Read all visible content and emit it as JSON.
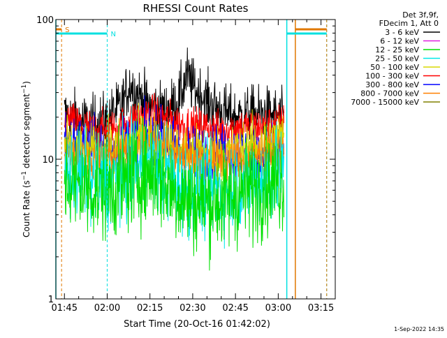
{
  "chart_data": {
    "type": "line",
    "title": "RHESSI Count Rates",
    "xlabel": "Start Time (20-Oct-16 01:42:02)",
    "ylabel": "Count Rate (s⁻¹ detector segment⁻¹)",
    "ylabel_main": "Count Rate (s",
    "ylabel_mid": " detector segment",
    "ylabel_end": ")",
    "ylabel_sup": "−1",
    "yscale": "log",
    "ylim": [
      1,
      100
    ],
    "xlim": [
      "01:42",
      "03:20"
    ],
    "y_ticks": [
      "1",
      "10",
      "100"
    ],
    "x_ticks": [
      "01:45",
      "02:00",
      "02:15",
      "02:30",
      "02:45",
      "03:00",
      "03:15"
    ],
    "timestamp": "1-Sep-2022 14:35",
    "legend": {
      "placement": "right",
      "header": [
        "Det 3f,9f,",
        "FDecim 1, Att 0"
      ],
      "entries": [
        {
          "label": "3 - 6 keV",
          "color": "#000000"
        },
        {
          "label": "6 - 12 keV",
          "color": "#e020e0"
        },
        {
          "label": "12 - 25 keV",
          "color": "#00e000"
        },
        {
          "label": "25 - 50 keV",
          "color": "#00e8e8"
        },
        {
          "label": "50 - 100 keV",
          "color": "#d8d800"
        },
        {
          "label": "100 - 300 keV",
          "color": "#ff0000"
        },
        {
          "label": "300 - 800 keV",
          "color": "#0000ff"
        },
        {
          "label": "800 - 7000 keV",
          "color": "#ff8000"
        },
        {
          "label": "7000 - 15000 keV",
          "color": "#808000"
        }
      ]
    },
    "series": [
      {
        "name": "3 - 6 keV",
        "color": "#000000",
        "noise": 0.1,
        "x": [
          "01:45",
          "01:50",
          "01:55",
          "02:00",
          "02:05",
          "02:08",
          "02:10",
          "02:15",
          "02:20",
          "02:25",
          "02:28",
          "02:30",
          "02:35",
          "02:40",
          "02:45",
          "02:50",
          "02:55",
          "03:00",
          "03:02"
        ],
        "y": [
          21,
          19,
          18,
          19,
          24,
          35,
          30,
          24,
          22,
          26,
          40,
          33,
          26,
          22,
          20,
          21,
          21,
          20,
          19
        ]
      },
      {
        "name": "100 - 300 keV",
        "color": "#ff0000",
        "noise": 0.07,
        "x": [
          "01:45",
          "01:50",
          "01:55",
          "02:00",
          "02:05",
          "02:10",
          "02:15",
          "02:20",
          "02:25",
          "02:30",
          "02:35",
          "02:40",
          "02:45",
          "02:50",
          "02:55",
          "03:00",
          "03:02"
        ],
        "y": [
          19,
          18,
          16,
          16,
          17,
          20,
          21,
          20,
          18,
          17,
          17,
          16,
          17,
          17,
          17,
          18,
          18
        ]
      },
      {
        "name": "300 - 800 keV",
        "color": "#0000ff",
        "noise": 0.1,
        "x": [
          "01:45",
          "01:50",
          "01:55",
          "02:00",
          "02:05",
          "02:10",
          "02:15",
          "02:20",
          "02:25",
          "02:30",
          "02:35",
          "02:40",
          "02:45",
          "02:50",
          "02:55",
          "03:00",
          "03:02"
        ],
        "y": [
          15,
          13,
          12,
          12,
          13,
          14,
          15,
          14,
          12,
          11,
          11,
          11,
          11,
          11,
          11,
          12,
          12
        ]
      },
      {
        "name": "50 - 100 keV",
        "color": "#d8d800",
        "noise": 0.1,
        "x": [
          "01:45",
          "01:50",
          "01:55",
          "02:00",
          "02:05",
          "02:10",
          "02:15",
          "02:20",
          "02:25",
          "02:30",
          "02:35",
          "02:40",
          "02:45",
          "02:50",
          "02:55",
          "03:00",
          "03:02"
        ],
        "y": [
          12,
          11,
          11,
          11,
          12,
          13,
          14,
          13,
          11,
          11,
          11,
          11,
          11,
          12,
          13,
          14,
          14
        ]
      },
      {
        "name": "800 - 7000 keV",
        "color": "#ff8000",
        "noise": 0.08,
        "x": [
          "01:45",
          "01:50",
          "01:55",
          "02:00",
          "02:05",
          "02:10",
          "02:15",
          "02:20",
          "02:25",
          "02:30",
          "02:35",
          "02:40",
          "02:45",
          "02:50",
          "02:55",
          "03:00",
          "03:02"
        ],
        "y": [
          11,
          10,
          10,
          10,
          11,
          12,
          13,
          12,
          11,
          10,
          10,
          10,
          10,
          10,
          11,
          11,
          11
        ]
      },
      {
        "name": "25 - 50 keV",
        "color": "#00e8e8",
        "noise": 0.16,
        "x": [
          "01:45",
          "01:50",
          "01:55",
          "02:00",
          "02:05",
          "02:10",
          "02:15",
          "02:20",
          "02:25",
          "02:30",
          "02:35",
          "02:40",
          "02:45",
          "02:50",
          "02:55",
          "03:00",
          "03:02"
        ],
        "y": [
          8,
          7.5,
          7,
          7,
          7.5,
          8.5,
          9,
          8,
          6.5,
          6,
          6,
          6,
          6.5,
          7,
          7.5,
          8,
          8
        ]
      },
      {
        "name": "12 - 25 keV",
        "color": "#00e000",
        "noise": 0.18,
        "x": [
          "01:45",
          "01:50",
          "01:55",
          "02:00",
          "02:05",
          "02:10",
          "02:15",
          "02:20",
          "02:25",
          "02:30",
          "02:35",
          "02:40",
          "02:45",
          "02:50",
          "02:55",
          "03:00",
          "03:02"
        ],
        "y": [
          7,
          6.5,
          6,
          6,
          6.5,
          7.5,
          8,
          7,
          5.5,
          5,
          5,
          5,
          5.5,
          6,
          6.5,
          7,
          7
        ]
      }
    ],
    "annotations": {
      "attenuator_segments": [
        {
          "label": "S",
          "color": "#e07800",
          "x_start": "01:42",
          "x_end": "01:44"
        },
        {
          "label": "N",
          "color": "#00e0e0",
          "x_start": "01:42",
          "x_end": "02:00"
        },
        {
          "label": "",
          "color": "#00e0e0",
          "x_start": "03:03",
          "x_end": "03:17"
        },
        {
          "label": "",
          "color": "#e07800",
          "x_start": "03:06",
          "x_end": "03:17"
        }
      ],
      "vlines": [
        {
          "x": "01:42",
          "color": "#00e0e0",
          "style": "solid"
        },
        {
          "x": "01:44",
          "color": "#e07800",
          "style": "dashed"
        },
        {
          "x": "02:00",
          "color": "#00e0e0",
          "style": "dashed"
        },
        {
          "x": "03:03",
          "color": "#00e0e0",
          "style": "solid"
        },
        {
          "x": "03:06",
          "color": "#e07800",
          "style": "solid"
        },
        {
          "x": "03:17",
          "color": "#00e0e0",
          "style": "dashed"
        },
        {
          "x": "03:17",
          "color": "#e07800",
          "style": "dashed"
        }
      ]
    }
  }
}
